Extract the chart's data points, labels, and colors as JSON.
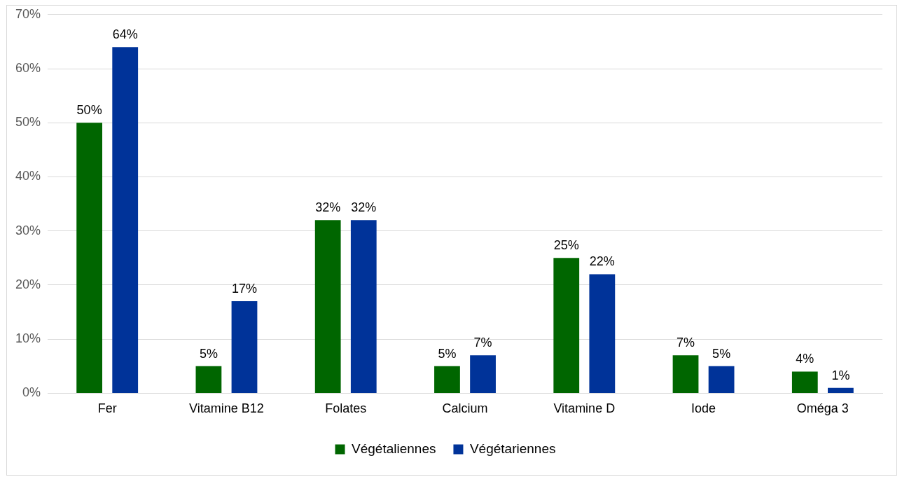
{
  "chart_data": {
    "type": "bar",
    "categories": [
      "Fer",
      "Vitamine B12",
      "Folates",
      "Calcium",
      "Vitamine D",
      "Iode",
      "Oméga 3"
    ],
    "series": [
      {
        "name": "Végétaliennes",
        "color": "#006600",
        "values": [
          50,
          5,
          32,
          5,
          25,
          7,
          4
        ],
        "value_labels": [
          "50%",
          "5%",
          "32%",
          "5%",
          "25%",
          "7%",
          "4%"
        ]
      },
      {
        "name": "Végétariennes",
        "color": "#003399",
        "values": [
          64,
          17,
          32,
          7,
          22,
          5,
          1
        ],
        "value_labels": [
          "64%",
          "17%",
          "32%",
          "7%",
          "22%",
          "5%",
          "1%"
        ]
      }
    ],
    "ylim": [
      0,
      70
    ],
    "yticks": [
      {
        "value": 0,
        "label": "0%"
      },
      {
        "value": 10,
        "label": "10%"
      },
      {
        "value": 20,
        "label": "20%"
      },
      {
        "value": 30,
        "label": "30%"
      },
      {
        "value": 40,
        "label": "40%"
      },
      {
        "value": 50,
        "label": "50%"
      },
      {
        "value": 60,
        "label": "60%"
      },
      {
        "value": 70,
        "label": "70%"
      }
    ],
    "grid": "y",
    "legend": "bottom"
  }
}
